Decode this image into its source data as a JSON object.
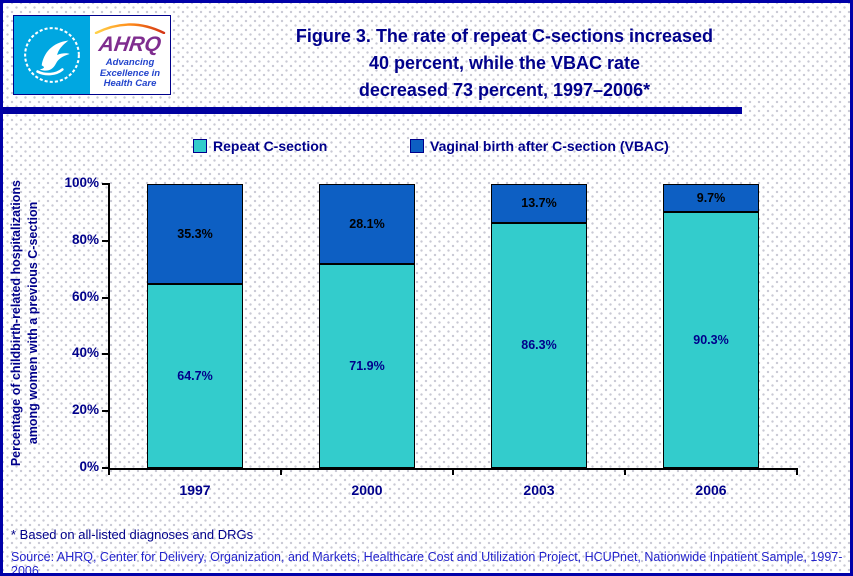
{
  "header": {
    "logo": {
      "ahrq_text": "AHRQ",
      "tagline_line1": "Advancing",
      "tagline_line2": "Excellence in",
      "tagline_line3": "Health Care"
    },
    "title_line1": "Figure 3. The rate of repeat C-sections increased",
    "title_line2": "40 percent, while the VBAC rate",
    "title_line3": "decreased 73 percent, 1997–2006*"
  },
  "legend": [
    {
      "label": "Repeat C-section",
      "color": "#33CCCC"
    },
    {
      "label": "Vaginal birth after C-section (VBAC)",
      "color": "#0D5FC3"
    }
  ],
  "chart_data": {
    "type": "bar",
    "stacked": true,
    "categories": [
      "1997",
      "2000",
      "2003",
      "2006"
    ],
    "series": [
      {
        "name": "Repeat C-section",
        "color": "#33CCCC",
        "label_color": "#00008B",
        "values": [
          64.7,
          71.9,
          86.3,
          90.3
        ]
      },
      {
        "name": "Vaginal birth after C-section (VBAC)",
        "color": "#0D5FC3",
        "label_color": "#000000",
        "values": [
          35.3,
          28.1,
          13.7,
          9.7
        ]
      }
    ],
    "value_suffix": "%",
    "title": "Figure 3. The rate of repeat C-sections increased 40 percent, while the VBAC rate decreased 73 percent, 1997–2006*",
    "xlabel": "",
    "ylabel_line1": "Percentage of childbirth-related hospitalizations",
    "ylabel_line2": "among women with a previous C-section",
    "yticks": [
      "0%",
      "20%",
      "40%",
      "60%",
      "80%",
      "100%"
    ],
    "ylim": [
      0,
      100
    ],
    "grid": false,
    "legend_position": "top"
  },
  "footer": {
    "footnote": "* Based on all-listed diagnoses and DRGs",
    "source": "Source: AHRQ, Center for Delivery, Organization, and Markets, Healthcare Cost and Utilization Project, HCUPnet, Nationwide Inpatient Sample, 1997-2006"
  }
}
